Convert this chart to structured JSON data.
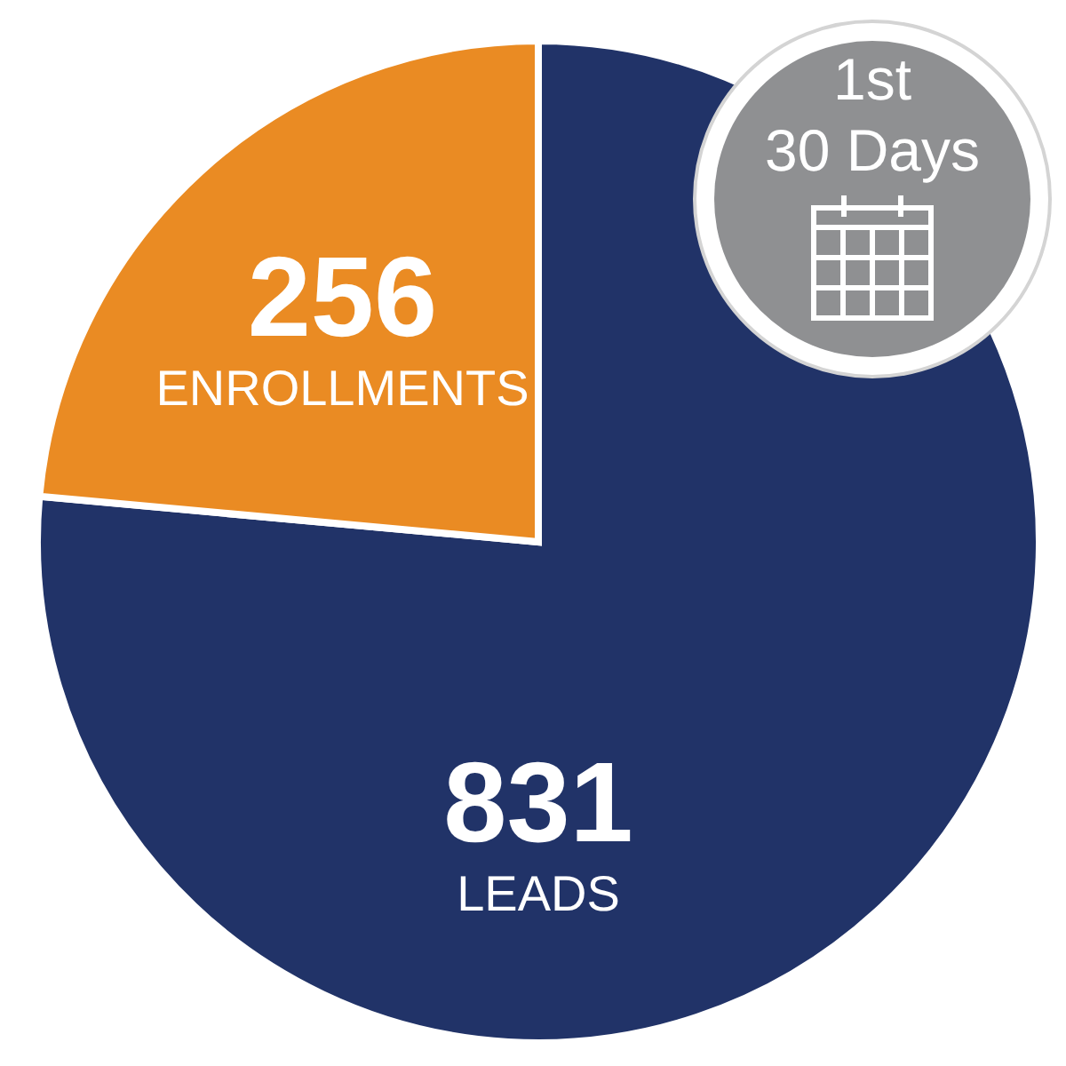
{
  "chart_data": {
    "type": "pie",
    "title": "1st\n30 Days",
    "categories": [
      "LEADS",
      "ENROLLMENTS"
    ],
    "values": [
      831,
      256
    ],
    "colors": [
      "#213368",
      "#ea8b23"
    ],
    "data_labels": true
  }
}
